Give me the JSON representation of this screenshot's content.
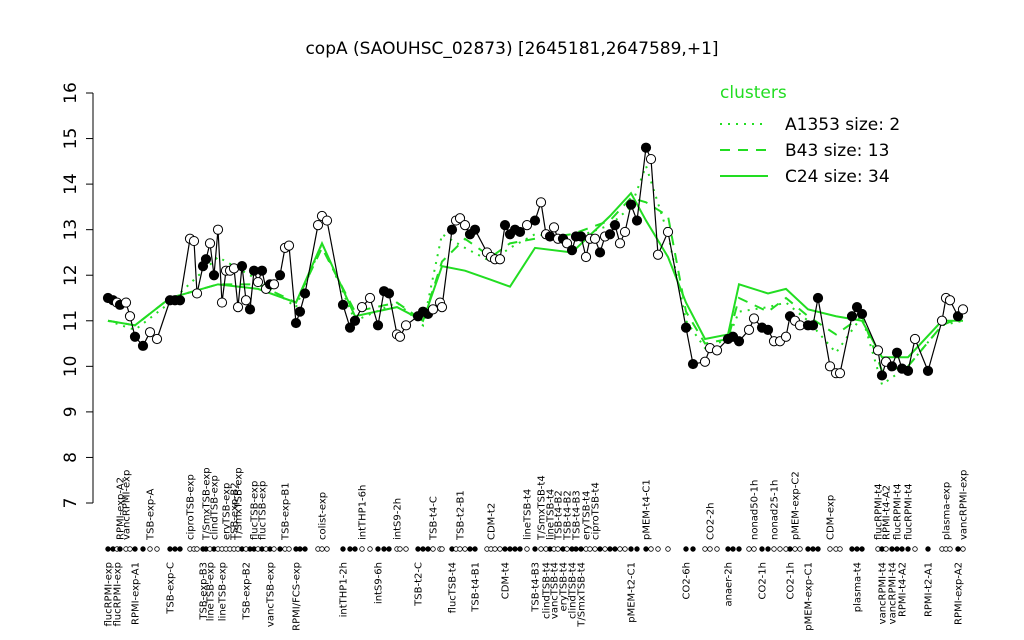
{
  "chart_data": {
    "type": "line",
    "title": "copA (SAOUHSC_02873) [2645181,2647589,+1]",
    "ylim": [
      7,
      16
    ],
    "yticks": [
      7,
      8,
      9,
      10,
      11,
      12,
      13,
      14,
      15,
      16
    ],
    "color": "#000000",
    "categories": [
      "flucRPMI-exp",
      null,
      "flucRPMI-exp",
      "RPMI-exp-A2",
      "vancRPMI-exp",
      null,
      "RPMI-exp-A1",
      null,
      "TSB-exp-A",
      null,
      "TSB-exp-C",
      null,
      null,
      "ciproTSB-exp",
      null,
      null,
      "TSB-exp-B3",
      "T/SmxTSB-exp",
      "lineTSB-exp",
      "clindTSB-exp",
      null,
      "lineTSB-exp",
      "eryTSB-exp",
      null,
      "TSB-exp-B2",
      "T/SmxTSB-exp",
      null,
      "TSB-exp-B2",
      null,
      "flucTSB-exp",
      null,
      "flucTSB-exp",
      null,
      "vancTSB-exp",
      null,
      null,
      "TSB-exp-B1",
      null,
      "RPMI/FCS-exp",
      null,
      null,
      null,
      "colist-exp",
      null,
      "intTHP1-2h",
      null,
      null,
      "intTHP1-6h",
      null,
      "intS9-6h",
      null,
      null,
      "intS9-2h",
      null,
      null,
      "TSB-t2-C",
      null,
      null,
      "TSB-t4-C",
      null,
      null,
      "flucTSB-t4",
      null,
      "TSB-t2-B1",
      null,
      null,
      "TSB-t4-B1",
      null,
      "CDM-t2",
      null,
      null,
      "CDM-t4",
      null,
      null,
      null,
      "lineTSB-t4",
      "TSB-t4-B3",
      "T/SmxTSB-t4",
      "clindTSB-t4",
      "lineTSB-t4",
      "vancTSB-t4",
      "TSB-t4-B2",
      "eryTSB-t4",
      "TSB-t4-B2",
      "clindTSB-t4",
      "TSB-t4-B3",
      "T/SmxTSB-t4",
      "eryTSB-t4",
      null,
      "ciproTSB-t4",
      null,
      null,
      null,
      null,
      null,
      null,
      "pMEM-t2-C1",
      null,
      "pMEM-t4-C1",
      null,
      null,
      null,
      "CO2-6h",
      null,
      null,
      "CO2-2h",
      null,
      "anaer-2h",
      null,
      null,
      null,
      "nonad50-1h",
      "CO2-1h",
      null,
      "nonad25-1h",
      null,
      null,
      "CO2-1h",
      "pMEM-exp-C2",
      null,
      "pMEM-exp-C1",
      null,
      null,
      "CDM-exp",
      null,
      null,
      null,
      "plasma-t4",
      null,
      "flucRPMI-t4",
      "vancRPMI-t4",
      "RPMI-t4-A2",
      "vancRPMI-t4",
      "flucRPMI-t4",
      "RPMI-t4-A2",
      "flucRPMI-t4",
      null,
      "RPMI-t2-A1",
      null,
      "plasma-exp",
      null,
      "RPMI-exp-A2",
      "vancRPMI-exp"
    ],
    "values": [
      11.5,
      11.45,
      11.4,
      11.35,
      11.4,
      11.1,
      10.65,
      10.45,
      10.75,
      10.6,
      11.45,
      11.45,
      11.45,
      12.8,
      12.75,
      11.6,
      12.2,
      12.35,
      12.7,
      12.0,
      13.0,
      11.4,
      12.1,
      12.1,
      12.15,
      11.3,
      12.2,
      11.45,
      11.25,
      12.1,
      11.85,
      12.1,
      11.7,
      11.8,
      11.8,
      12.0,
      12.6,
      12.65,
      10.95,
      11.2,
      11.6,
      13.1,
      13.3,
      13.2,
      11.35,
      10.85,
      11.0,
      11.3,
      11.5,
      10.9,
      11.65,
      11.6,
      10.7,
      10.65,
      10.9,
      11.1,
      11.2,
      11.15,
      11.25,
      11.4,
      11.3,
      13.0,
      13.2,
      13.25,
      13.1,
      12.9,
      13.0,
      12.5,
      12.4,
      12.35,
      12.35,
      13.1,
      12.9,
      13.0,
      12.95,
      13.1,
      13.2,
      13.6,
      12.9,
      12.85,
      13.05,
      12.8,
      12.8,
      12.7,
      12.55,
      12.85,
      12.85,
      12.4,
      12.8,
      12.8,
      12.5,
      12.85,
      12.9,
      13.1,
      12.7,
      12.95,
      13.55,
      13.2,
      14.8,
      14.55,
      12.45,
      12.95,
      10.85,
      10.05,
      10.1,
      10.4,
      10.35,
      10.6,
      10.65,
      10.55,
      10.8,
      11.05,
      10.85,
      10.8,
      10.55,
      10.55,
      10.65,
      11.1,
      11.0,
      10.9,
      10.9,
      10.9,
      11.5,
      10.0,
      9.85,
      9.85,
      11.1,
      11.3,
      11.15,
      10.35,
      9.8,
      10.1,
      10.0,
      10.3,
      9.95,
      9.9,
      10.6,
      9.9,
      11.0,
      11.5,
      11.45,
      11.1,
      11.25
    ],
    "filled": [
      true,
      true,
      false,
      true,
      false,
      false,
      true,
      true,
      false,
      false,
      true,
      true,
      true,
      false,
      false,
      false,
      true,
      true,
      false,
      true,
      false,
      false,
      false,
      false,
      false,
      false,
      true,
      false,
      true,
      true,
      false,
      true,
      false,
      true,
      false,
      true,
      false,
      false,
      true,
      true,
      true,
      false,
      false,
      false,
      true,
      true,
      true,
      false,
      false,
      true,
      true,
      true,
      false,
      false,
      false,
      true,
      true,
      true,
      false,
      false,
      false,
      true,
      false,
      false,
      false,
      true,
      true,
      false,
      false,
      false,
      false,
      true,
      true,
      true,
      true,
      false,
      true,
      false,
      false,
      true,
      false,
      false,
      true,
      false,
      true,
      true,
      true,
      false,
      false,
      false,
      true,
      false,
      true,
      true,
      false,
      false,
      true,
      true,
      true,
      false,
      false,
      false,
      true,
      true,
      false,
      false,
      false,
      true,
      true,
      true,
      false,
      false,
      true,
      true,
      false,
      false,
      false,
      true,
      false,
      false,
      true,
      true,
      true,
      false,
      false,
      false,
      true,
      true,
      true,
      false,
      true,
      false,
      true,
      true,
      true,
      true,
      false,
      true,
      false,
      false,
      false,
      true,
      false
    ],
    "legend_title": "clusters",
    "clusters": [
      {
        "name": "A1353 size: 2",
        "color": "#22dd22",
        "style": "dotted",
        "x": [
          0,
          6,
          10,
          20,
          30,
          38,
          42,
          46,
          52,
          56,
          60,
          64,
          68,
          72,
          76,
          84,
          92,
          96,
          98,
          101,
          102,
          104,
          107,
          109,
          113,
          116,
          120,
          124,
          128,
          130,
          135,
          138,
          142
        ],
        "values": [
          11.0,
          10.8,
          11.4,
          12.4,
          11.9,
          11.3,
          12.7,
          11.0,
          11.4,
          10.9,
          12.9,
          12.6,
          12.3,
          12.6,
          12.9,
          12.8,
          13.1,
          13.5,
          14.4,
          12.9,
          11.0,
          10.4,
          10.6,
          11.2,
          11.3,
          11.4,
          11.0,
          10.3,
          11.1,
          9.6,
          10.0,
          10.9,
          11.0
        ]
      },
      {
        "name": "B43 size: 13",
        "color": "#22dd22",
        "style": "dashed",
        "x": [
          0,
          6,
          10,
          20,
          30,
          38,
          42,
          46,
          52,
          56,
          60,
          64,
          68,
          72,
          76,
          84,
          92,
          96,
          98,
          101,
          102,
          104,
          107,
          109,
          113,
          116,
          120,
          124,
          128,
          130,
          135,
          138,
          142
        ],
        "values": [
          11.0,
          10.9,
          11.5,
          11.8,
          11.8,
          11.4,
          12.6,
          11.2,
          11.4,
          11.0,
          12.3,
          12.8,
          12.4,
          12.7,
          12.8,
          12.9,
          13.2,
          13.7,
          13.6,
          13.3,
          11.2,
          10.5,
          10.6,
          11.5,
          11.2,
          11.5,
          11.1,
          10.7,
          11.1,
          9.9,
          10.0,
          10.9,
          11.1
        ]
      },
      {
        "name": "C24 size: 34",
        "color": "#22dd22",
        "style": "solid",
        "x": [
          0,
          6,
          10,
          20,
          30,
          38,
          42,
          46,
          52,
          56,
          60,
          64,
          68,
          72,
          76,
          84,
          92,
          96,
          98,
          101,
          102,
          104,
          107,
          109,
          113,
          116,
          120,
          124,
          128,
          130,
          135,
          138,
          142
        ],
        "values": [
          11.0,
          10.9,
          11.5,
          11.8,
          11.7,
          11.4,
          12.7,
          11.1,
          11.3,
          11.0,
          12.2,
          12.1,
          11.9,
          11.75,
          12.6,
          12.5,
          13.3,
          13.8,
          13.2,
          12.4,
          11.4,
          10.6,
          10.7,
          11.8,
          11.6,
          11.7,
          11.25,
          11.1,
          11.0,
          10.2,
          10.2,
          11.0,
          11.0
        ]
      }
    ]
  }
}
